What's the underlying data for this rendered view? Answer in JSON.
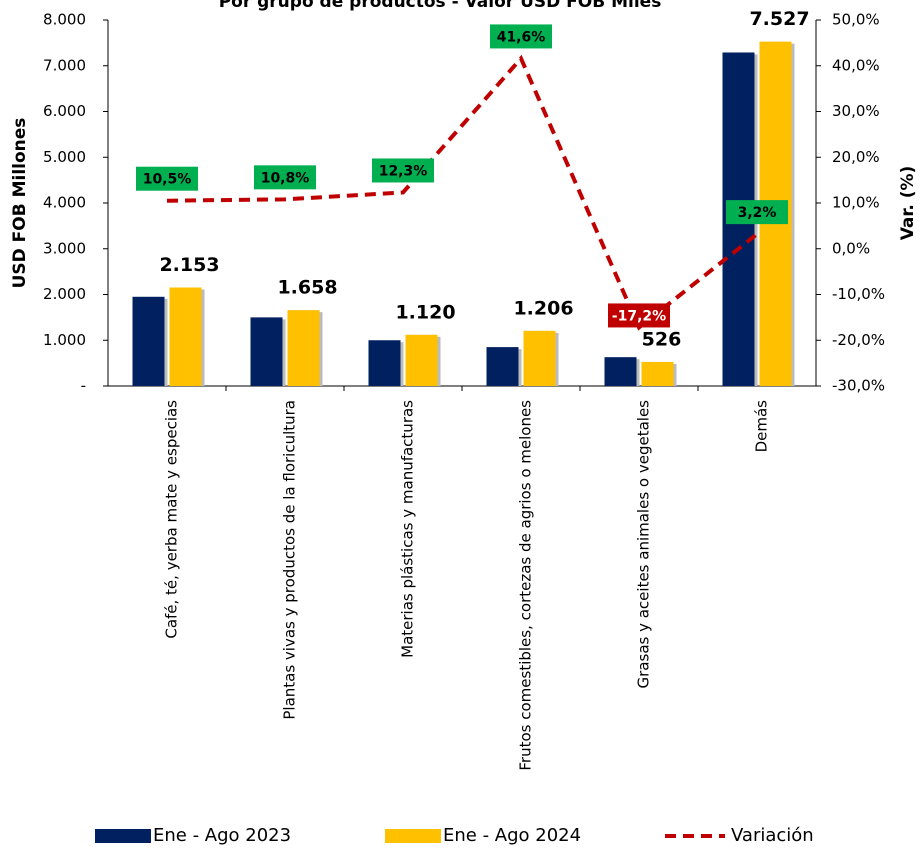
{
  "chart_data": {
    "type": "bar",
    "title": "Por grupo de productos - Valor USD FOB Miles",
    "y_label": "USD FOB Millones",
    "y2_label": "Var. (%)",
    "categories": [
      "Café, té, yerba mate y especias",
      "Plantas vivas y productos de la floricultura",
      "Materias plásticas y manufacturas",
      "Frutos comestibles, cortezas de agrios o melones",
      "Grasas y aceites animales o vegetales",
      "Demás"
    ],
    "series": [
      {
        "name": "Ene - Ago 2023",
        "type": "bar",
        "color": "#002060",
        "values": [
          1950,
          1500,
          1000,
          850,
          630,
          7290
        ]
      },
      {
        "name": "Ene - Ago 2024",
        "type": "bar",
        "color": "#ffc000",
        "values": [
          2153,
          1658,
          1120,
          1206,
          526,
          7527
        ],
        "value_labels": [
          "2.153",
          "1.658",
          "1.120",
          "1.206",
          "526",
          "7.527"
        ]
      },
      {
        "name": "Variación",
        "type": "line",
        "axis": "y2",
        "color": "#c00000",
        "values": [
          10.5,
          10.8,
          12.3,
          41.6,
          -17.2,
          3.2
        ],
        "value_labels": [
          "10,5%",
          "10,8%",
          "12,3%",
          "41,6%",
          "-17,2%",
          "3,2%"
        ]
      }
    ],
    "ylim": [
      0,
      8000
    ],
    "yticks": [
      {
        "value": 0,
        "label": "-"
      },
      {
        "value": 1000,
        "label": "1.000"
      },
      {
        "value": 2000,
        "label": "2.000"
      },
      {
        "value": 3000,
        "label": "3.000"
      },
      {
        "value": 4000,
        "label": "4.000"
      },
      {
        "value": 5000,
        "label": "5.000"
      },
      {
        "value": 6000,
        "label": "6.000"
      },
      {
        "value": 7000,
        "label": "7.000"
      },
      {
        "value": 8000,
        "label": "8.000"
      }
    ],
    "y2lim": [
      -30,
      50
    ],
    "y2ticks": [
      {
        "value": -30,
        "label": "-30,0%"
      },
      {
        "value": -20,
        "label": "-20,0%"
      },
      {
        "value": -10,
        "label": "-10,0%"
      },
      {
        "value": 0,
        "label": "0,0%"
      },
      {
        "value": 10,
        "label": "10,0%"
      },
      {
        "value": 20,
        "label": "20,0%"
      },
      {
        "value": 30,
        "label": "30,0%"
      },
      {
        "value": 40,
        "label": "40,0%"
      },
      {
        "value": 50,
        "label": "50,0%"
      }
    ],
    "legend": "bottom"
  }
}
